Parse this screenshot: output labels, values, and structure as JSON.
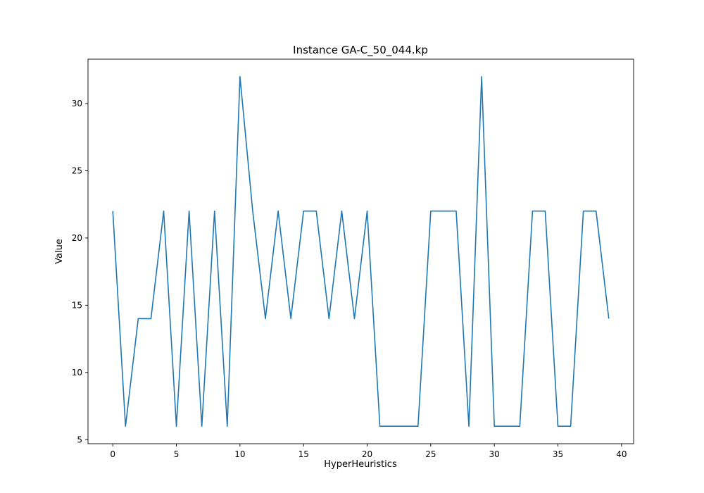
{
  "chart_data": {
    "type": "line",
    "title": "Instance GA-C_50_044.kp",
    "xlabel": "HyperHeuristics",
    "ylabel": "Value",
    "xlim": [
      -1.95,
      40.95
    ],
    "ylim": [
      4.7,
      33.3
    ],
    "xticks": [
      0,
      5,
      10,
      15,
      20,
      25,
      30,
      35,
      40
    ],
    "yticks": [
      5,
      10,
      15,
      20,
      25,
      30
    ],
    "grid": false,
    "legend": "none",
    "series": [
      {
        "color": "#1f77b4",
        "x": [
          0,
          1,
          2,
          3,
          4,
          5,
          6,
          7,
          8,
          9,
          10,
          11,
          12,
          13,
          14,
          15,
          16,
          17,
          18,
          19,
          20,
          21,
          22,
          23,
          24,
          25,
          26,
          27,
          28,
          29,
          30,
          31,
          32,
          33,
          34,
          35,
          36,
          37,
          38,
          39
        ],
        "y": [
          22,
          6,
          14,
          14,
          22,
          6,
          22,
          6,
          22,
          6,
          32,
          22,
          14,
          22,
          14,
          22,
          22,
          14,
          22,
          14,
          22,
          6,
          6,
          6,
          6,
          22,
          22,
          22,
          6,
          32,
          6,
          6,
          6,
          22,
          22,
          6,
          6,
          22,
          22,
          14
        ]
      }
    ]
  }
}
